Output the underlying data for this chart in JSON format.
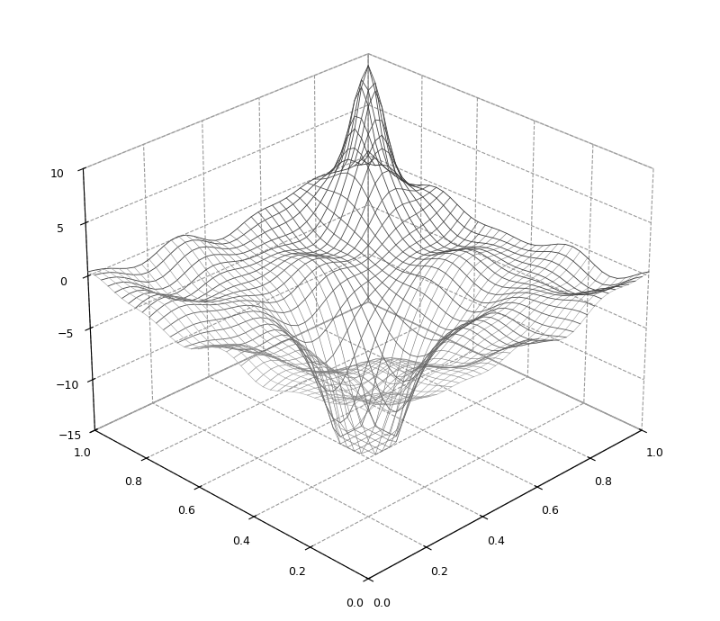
{
  "xlim": [
    0,
    1
  ],
  "ylim": [
    0,
    1
  ],
  "zlim": [
    -15,
    10
  ],
  "xticks": [
    0,
    0.2,
    0.4,
    0.6,
    0.8,
    1.0
  ],
  "yticks": [
    0,
    0.2,
    0.4,
    0.6,
    0.8,
    1.0
  ],
  "zticks": [
    -15,
    -10,
    -5,
    0,
    5,
    10
  ],
  "n_points": 40,
  "background_color": "#ffffff",
  "figsize": [
    8.0,
    6.9
  ],
  "dpi": 100,
  "elev": 28,
  "azim": -135
}
